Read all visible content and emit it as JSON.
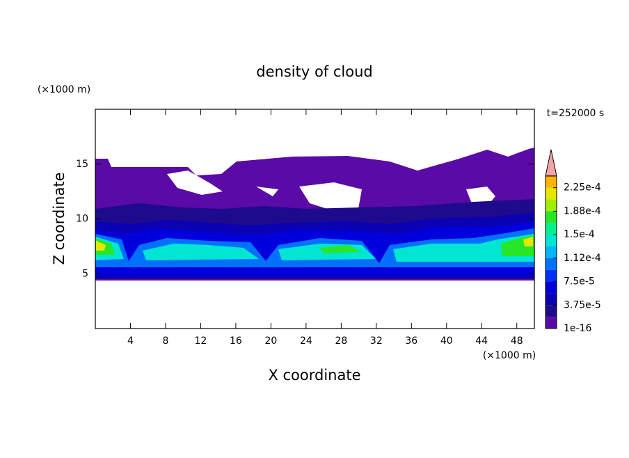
{
  "chart_data": {
    "type": "contour",
    "title": "density of cloud",
    "x_label": "X coordinate",
    "y_label": "Z coordinate",
    "x_unit": "(×1000 m)",
    "y_unit": "(×1000 m)",
    "time_label": "t=252000 s",
    "xlim": [
      0,
      50
    ],
    "xticks": [
      4,
      8,
      12,
      16,
      20,
      24,
      28,
      32,
      36,
      40,
      44,
      48
    ],
    "ylim": [
      0,
      20
    ],
    "yticks": [
      5,
      10,
      15
    ],
    "colorbar": {
      "clim": [
        1e-16,
        0.00024375
      ],
      "ticks": [
        1e-16,
        {
          "value": 3.75e-05,
          "label": "3.75e-5"
        },
        {
          "value": 7.5e-05,
          "label": "7.5e-5"
        },
        {
          "value": 0.0001125,
          "label": "1.12e-4"
        },
        {
          "value": 0.00015,
          "label": "1.5e-4"
        },
        {
          "value": 0.0001875,
          "label": "1.88e-4"
        },
        {
          "value": 0.000225,
          "label": "2.25e-4"
        }
      ],
      "colors": [
        "#5a0aa6",
        "#1e0a8c",
        "#0a00b4",
        "#0000dc",
        "#0030ff",
        "#0070ff",
        "#00b4ff",
        "#00e6d2",
        "#00f08c",
        "#28e628",
        "#a0f000",
        "#e6e600",
        "#ffb400"
      ],
      "extend_color": "#f4a4a4"
    }
  }
}
